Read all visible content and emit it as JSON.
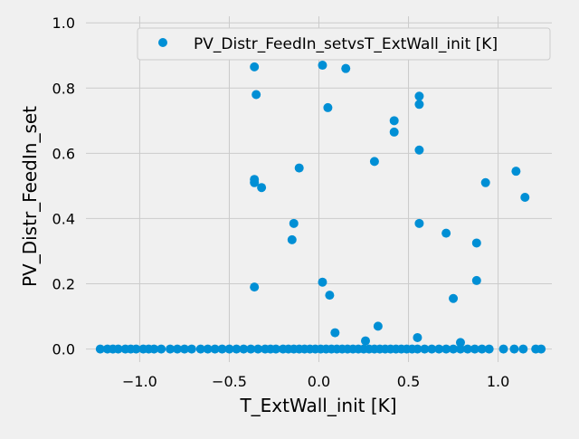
{
  "chart_data": {
    "type": "scatter",
    "xlabel": "T_ExtWall_init [K]",
    "ylabel": "PV_Distr_FeedIn_set",
    "xlim": [
      -1.3,
      1.3
    ],
    "ylim": [
      -0.04,
      1.02
    ],
    "xticks": [
      -1.0,
      -0.5,
      0.0,
      0.5,
      1.0
    ],
    "xtick_labels": [
      "−1.0",
      "−0.5",
      "0.0",
      "0.5",
      "1.0"
    ],
    "yticks": [
      0.0,
      0.2,
      0.4,
      0.6,
      0.8,
      1.0
    ],
    "ytick_labels": [
      "0.0",
      "0.2",
      "0.4",
      "0.6",
      "0.8",
      "1.0"
    ],
    "grid": true,
    "legend_position": "top-right",
    "colors": {
      "marker": "#008fd5",
      "background": "#f0f0f0",
      "grid": "#cbcbcb"
    },
    "series": [
      {
        "name": "PV_Distr_FeedIn_setvsT_ExtWall_init [K]",
        "points": [
          [
            -0.36,
            0.865
          ],
          [
            -0.35,
            0.78
          ],
          [
            -0.36,
            0.52
          ],
          [
            -0.36,
            0.51
          ],
          [
            -0.32,
            0.495
          ],
          [
            -0.36,
            0.19
          ],
          [
            -0.11,
            0.555
          ],
          [
            -0.14,
            0.385
          ],
          [
            -0.15,
            0.335
          ],
          [
            0.02,
            0.87
          ],
          [
            0.05,
            0.74
          ],
          [
            0.15,
            0.86
          ],
          [
            0.02,
            0.205
          ],
          [
            0.06,
            0.165
          ],
          [
            0.09,
            0.05
          ],
          [
            0.31,
            0.575
          ],
          [
            0.42,
            0.7
          ],
          [
            0.42,
            0.665
          ],
          [
            0.33,
            0.07
          ],
          [
            0.26,
            0.025
          ],
          [
            0.56,
            0.775
          ],
          [
            0.56,
            0.75
          ],
          [
            0.56,
            0.61
          ],
          [
            0.56,
            0.385
          ],
          [
            0.55,
            0.035
          ],
          [
            0.75,
            0.97
          ],
          [
            0.71,
            0.355
          ],
          [
            0.75,
            0.155
          ],
          [
            0.79,
            0.02
          ],
          [
            0.88,
            0.325
          ],
          [
            0.88,
            0.21
          ],
          [
            0.93,
            0.51
          ],
          [
            1.1,
            0.545
          ],
          [
            1.15,
            0.465
          ],
          [
            -1.22,
            0.0
          ],
          [
            -1.18,
            0.0
          ],
          [
            -1.15,
            0.0
          ],
          [
            -1.12,
            0.0
          ],
          [
            -1.08,
            0.0
          ],
          [
            -1.05,
            0.0
          ],
          [
            -1.02,
            0.0
          ],
          [
            -0.98,
            0.0
          ],
          [
            -0.95,
            0.0
          ],
          [
            -0.92,
            0.0
          ],
          [
            -0.88,
            0.0
          ],
          [
            -0.83,
            0.0
          ],
          [
            -0.79,
            0.0
          ],
          [
            -0.75,
            0.0
          ],
          [
            -0.71,
            0.0
          ],
          [
            -0.66,
            0.0
          ],
          [
            -0.62,
            0.0
          ],
          [
            -0.58,
            0.0
          ],
          [
            -0.54,
            0.0
          ],
          [
            -0.5,
            0.0
          ],
          [
            -0.46,
            0.0
          ],
          [
            -0.42,
            0.0
          ],
          [
            -0.38,
            0.0
          ],
          [
            -0.34,
            0.0
          ],
          [
            -0.3,
            0.0
          ],
          [
            -0.27,
            0.0
          ],
          [
            -0.24,
            0.0
          ],
          [
            -0.2,
            0.0
          ],
          [
            -0.17,
            0.0
          ],
          [
            -0.14,
            0.0
          ],
          [
            -0.11,
            0.0
          ],
          [
            -0.08,
            0.0
          ],
          [
            -0.05,
            0.0
          ],
          [
            -0.02,
            0.0
          ],
          [
            0.01,
            0.0
          ],
          [
            0.04,
            0.0
          ],
          [
            0.07,
            0.0
          ],
          [
            0.1,
            0.0
          ],
          [
            0.13,
            0.0
          ],
          [
            0.16,
            0.0
          ],
          [
            0.19,
            0.0
          ],
          [
            0.22,
            0.0
          ],
          [
            0.25,
            0.0
          ],
          [
            0.28,
            0.0
          ],
          [
            0.31,
            0.0
          ],
          [
            0.34,
            0.0
          ],
          [
            0.37,
            0.0
          ],
          [
            0.4,
            0.0
          ],
          [
            0.43,
            0.0
          ],
          [
            0.46,
            0.0
          ],
          [
            0.49,
            0.0
          ],
          [
            0.52,
            0.0
          ],
          [
            0.55,
            0.0
          ],
          [
            0.59,
            0.0
          ],
          [
            0.63,
            0.0
          ],
          [
            0.67,
            0.0
          ],
          [
            0.71,
            0.0
          ],
          [
            0.75,
            0.0
          ],
          [
            0.79,
            0.0
          ],
          [
            0.83,
            0.0
          ],
          [
            0.87,
            0.0
          ],
          [
            0.91,
            0.0
          ],
          [
            0.95,
            0.0
          ],
          [
            1.03,
            0.0
          ],
          [
            1.09,
            0.0
          ],
          [
            1.14,
            0.0
          ],
          [
            1.21,
            0.0
          ],
          [
            1.24,
            0.0
          ]
        ]
      }
    ]
  }
}
